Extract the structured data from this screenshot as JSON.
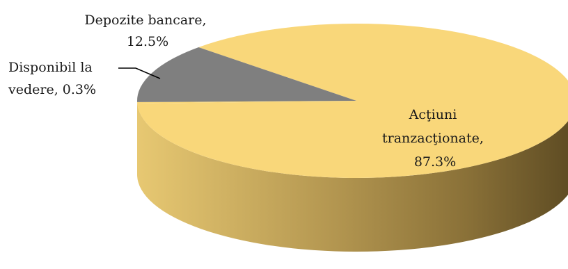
{
  "chart_data": {
    "type": "pie",
    "style": "3d",
    "slices": [
      {
        "label_lines": [
          "Acţiuni",
          "tranzacţionate,",
          "87.3%"
        ],
        "value": 87.3,
        "color": "#f9d77a"
      },
      {
        "label_lines": [
          "Depozite bancare,",
          "12.5%"
        ],
        "value": 12.5,
        "color": "#7f7f7f"
      },
      {
        "label_lines": [
          "Disponibil la",
          "vedere, 0.3%"
        ],
        "value": 0.3,
        "color": "#f9d77a"
      }
    ],
    "legend": "none"
  }
}
